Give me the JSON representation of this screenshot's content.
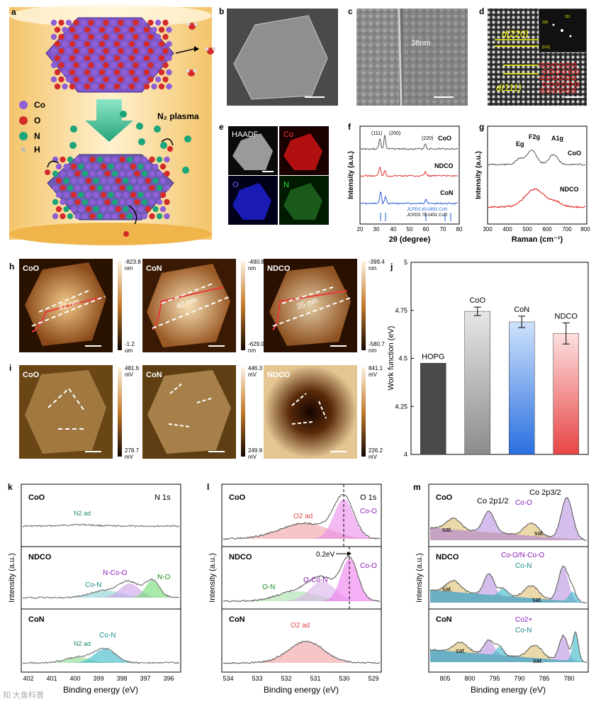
{
  "panels": {
    "a": {
      "letter": "a",
      "legend": [
        {
          "label": "Co",
          "color": "#8e5fd6"
        },
        {
          "label": "O",
          "color": "#d32b2b"
        },
        {
          "label": "N",
          "color": "#1aa57a"
        },
        {
          "label": "H",
          "color": "#bbbbbb"
        }
      ],
      "plasma_label": "N₂ plasma"
    },
    "b": {
      "letter": "b"
    },
    "c": {
      "letter": "c",
      "width_label": "38nm"
    },
    "d": {
      "letter": "d",
      "d_labels": [
        "d(220)",
        "d(111)"
      ],
      "fft_labels": [
        "220",
        "111",
        "[112]"
      ]
    },
    "e": {
      "letter": "e",
      "maps": [
        "HAADF",
        "Co",
        "O",
        "N"
      ]
    },
    "f": {
      "letter": "f",
      "peaks": [
        "(111)",
        "(200)",
        "(220)"
      ],
      "traces": [
        "CoO",
        "NDCO",
        "CoN"
      ],
      "refs": [
        "JCPDS 83-0831 CoN",
        "JCPDS 78-0431 CoO"
      ],
      "xlabel": "2θ (degree)",
      "ylabel": "Intensity (a.u.)",
      "xticks": [
        "20",
        "30",
        "40",
        "50",
        "60",
        "70",
        "80"
      ]
    },
    "g": {
      "letter": "g",
      "modes": [
        "Eg",
        "F2g",
        "A1g"
      ],
      "traces": [
        "CoO",
        "NDCO"
      ],
      "xlabel": "Raman  (cm⁻¹)",
      "ylabel": "Intensity (a.u.)",
      "xticks": [
        "300",
        "400",
        "500",
        "600",
        "700",
        "800"
      ]
    },
    "h": {
      "letter": "h",
      "tiles": [
        {
          "name": "CoO",
          "height": "42 nm",
          "top": "-823.8",
          "unit_top": "nm",
          "bottom": "-1.2",
          "unit_bottom": "um"
        },
        {
          "name": "CoN",
          "height": "40 nm",
          "top": "-490.8",
          "unit_top": "nm",
          "bottom": "-629.0",
          "unit_bottom": "nm"
        },
        {
          "name": "NDCO",
          "height": "35 nm",
          "top": "-399.4",
          "unit_top": "nm",
          "bottom": "-580.7",
          "unit_bottom": "nm"
        }
      ]
    },
    "i": {
      "letter": "i",
      "tiles": [
        {
          "name": "CoO",
          "top": "481.6",
          "unit_top": "mV",
          "bottom": "278.7",
          "unit_bottom": "mV"
        },
        {
          "name": "CoN",
          "top": "446.3",
          "unit_top": "mV",
          "bottom": "249.9",
          "unit_bottom": "mV"
        },
        {
          "name": "NDCO",
          "top": "841.1",
          "unit_top": "mV",
          "bottom": "226.2",
          "unit_bottom": "mV"
        }
      ]
    },
    "j": {
      "letter": "j"
    },
    "k": {
      "letter": "k",
      "title": "N 1s",
      "rows": [
        {
          "name": "CoO",
          "labels": [
            "N2 ad"
          ]
        },
        {
          "name": "NDCO",
          "labels": [
            "N-Co-O",
            "N-O",
            "Co-N"
          ]
        },
        {
          "name": "CoN",
          "labels": [
            "N2 ad",
            "Co-N"
          ]
        }
      ],
      "xlabel": "Binding energy (eV)",
      "ylabel": "Intensity (a.u.)",
      "xticks": [
        "402",
        "401",
        "400",
        "399",
        "398",
        "397",
        "396"
      ]
    },
    "l": {
      "letter": "l",
      "title": "O 1s",
      "shift": "0.2eV",
      "rows": [
        {
          "name": "CoO",
          "labels": [
            "O2 ad",
            "Co-O"
          ]
        },
        {
          "name": "NDCO",
          "labels": [
            "O-N",
            "O-Co-N",
            "Co-O"
          ]
        },
        {
          "name": "CoN",
          "labels": [
            "O2 ad"
          ]
        }
      ],
      "xlabel": "Binding energy (eV)",
      "ylabel": "Intensity (a.u.)",
      "xticks": [
        "534",
        "533",
        "532",
        "531",
        "530",
        "529"
      ]
    },
    "m": {
      "letter": "m",
      "rows": [
        {
          "name": "CoO",
          "labels": [
            "Co 2p1/2",
            "Co 2p3/2",
            "Co-O",
            "sat.",
            "sat."
          ]
        },
        {
          "name": "NDCO",
          "labels": [
            "Co-O/N-Co-O",
            "Co-N",
            "sat.",
            "sat."
          ]
        },
        {
          "name": "CoN",
          "labels": [
            "Co2+",
            "Co-N",
            "sat.",
            "sat."
          ]
        }
      ],
      "xlabel": "Binding energy (eV)",
      "ylabel": "Intensity (a.u.)",
      "xticks": [
        "805",
        "800",
        "795",
        "790",
        "785",
        "780"
      ]
    }
  },
  "chart_data": {
    "type": "bar",
    "title": "",
    "xlabel": "",
    "ylabel": "Work function (eV)",
    "categories": [
      "HOPG",
      "CoO",
      "CoN",
      "NDCO"
    ],
    "values": [
      4.475,
      4.745,
      4.69,
      4.63
    ],
    "errors": [
      0,
      0.022,
      0.03,
      0.055
    ],
    "ylim": [
      4,
      5
    ],
    "yticks": [
      "4",
      "4.25",
      "4.5",
      "4.75",
      "5"
    ],
    "colors": [
      "#4a4a4a",
      "#c8c8c8",
      "#6ea8ee",
      "#f08a8a"
    ]
  },
  "watermark": "知 大鱼科普"
}
